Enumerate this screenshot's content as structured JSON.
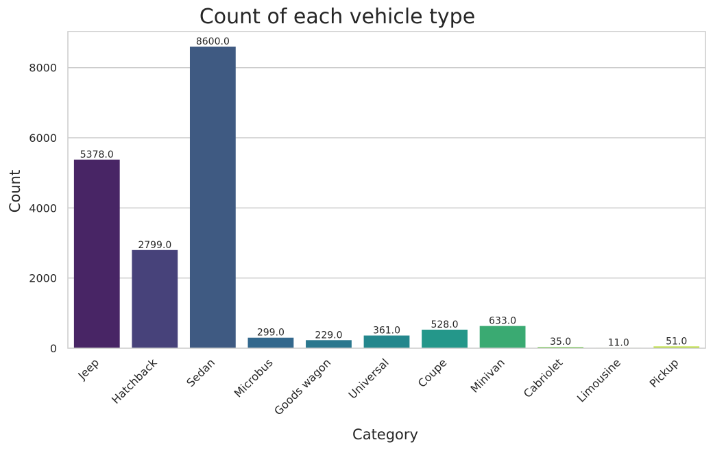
{
  "chart_data": {
    "type": "bar",
    "title": "Count of each vehicle type",
    "xlabel": "Category",
    "ylabel": "Count",
    "categories": [
      "Jeep",
      "Hatchback",
      "Sedan",
      "Microbus",
      "Goods wagon",
      "Universal",
      "Coupe",
      "Minivan",
      "Cabriolet",
      "Limousine",
      "Pickup"
    ],
    "values": [
      5378,
      2799,
      8600,
      299,
      229,
      361,
      528,
      633,
      35,
      11,
      51
    ],
    "data_labels": [
      "5378.0",
      "2799.0",
      "8600.0",
      "299.0",
      "229.0",
      "361.0",
      "528.0",
      "633.0",
      "35.0",
      "11.0",
      "51.0"
    ],
    "ylim": [
      0,
      9030
    ],
    "yticks": [
      0,
      2000,
      4000,
      6000,
      8000
    ],
    "ytick_labels": [
      "0",
      "2000",
      "4000",
      "6000",
      "8000"
    ],
    "grid": true,
    "xtick_rotation": 45,
    "colors": [
      "#482565",
      "#47427a",
      "#3f5a82",
      "#33688d",
      "#2a778e",
      "#24878d",
      "#24978a",
      "#3aaa72",
      "#7ccf58",
      "#b1dc40",
      "#bdde3f"
    ]
  }
}
